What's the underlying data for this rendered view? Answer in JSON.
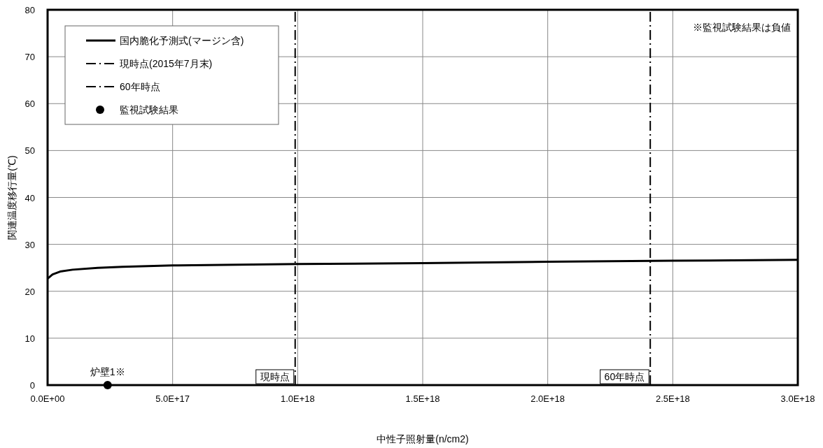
{
  "chart_data": {
    "type": "line",
    "xlabel": "中性子照射量(n/cm2)",
    "ylabel": "関連温度移行量(℃)",
    "xlim": [
      0,
      3e+18
    ],
    "ylim": [
      0,
      80
    ],
    "xticks": [
      {
        "value": 0,
        "label": "0.0E+00"
      },
      {
        "value": 5e+17,
        "label": "5.0E+17"
      },
      {
        "value": 1e+18,
        "label": "1.0E+18"
      },
      {
        "value": 1.5e+18,
        "label": "1.5E+18"
      },
      {
        "value": 2e+18,
        "label": "2.0E+18"
      },
      {
        "value": 2.5e+18,
        "label": "2.5E+18"
      },
      {
        "value": 3e+18,
        "label": "3.0E+18"
      }
    ],
    "yticks": [
      0,
      10,
      20,
      30,
      40,
      50,
      60,
      70,
      80
    ],
    "grid": true,
    "legend": "top left",
    "series": [
      {
        "name": "国内脆化予測式(マージン含)",
        "color": "#000000",
        "line_style": "solid",
        "x": [
          0,
          2e+16,
          5e+16,
          1e+17,
          2e+17,
          3e+17,
          5e+17,
          1e+18,
          1.5e+18,
          2e+18,
          2.5e+18,
          3e+18
        ],
        "values": [
          22.7,
          23.6,
          24.2,
          24.6,
          25.0,
          25.2,
          25.5,
          25.8,
          26.0,
          26.3,
          26.5,
          26.7
        ]
      },
      {
        "name": "現時点(2015年7月末)",
        "color": "#000000",
        "line_style": "dashed",
        "x": [
          9.9e+17,
          9.9e+17
        ],
        "values": [
          0,
          80
        ]
      },
      {
        "name": "60年時点",
        "color": "#000000",
        "line_style": "dashed",
        "x": [
          2.41e+18,
          2.41e+18
        ],
        "values": [
          0,
          80
        ]
      },
      {
        "name": "監視試験結果",
        "type": "scatter",
        "color": "#000000",
        "marker": "circle",
        "x": [
          2.4e+17
        ],
        "values": [
          0
        ]
      }
    ],
    "annotations": [
      {
        "text": "炉壁1※",
        "x": 2.4e+17,
        "y": 0
      },
      {
        "text": "現時点",
        "x": 9.9e+17,
        "y": 0
      },
      {
        "text": "60年時点",
        "x": 2.41e+18,
        "y": 0
      },
      "※監視試験結果は負値"
    ]
  }
}
